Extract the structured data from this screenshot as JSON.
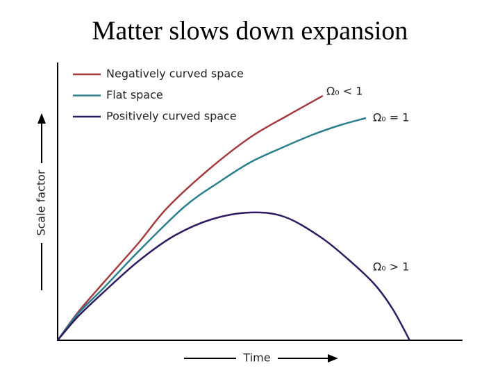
{
  "chart_data": {
    "type": "line",
    "title": "Matter slows down expansion",
    "x_label": "Time",
    "y_label": "Scale factor",
    "xlim": [
      0,
      10
    ],
    "ylim": [
      0,
      10
    ],
    "legend": "top-left",
    "series": [
      {
        "name": "Negatively curved space",
        "color": "#a33a3e",
        "x": [
          0,
          0.5,
          1.15,
          2,
          2.7,
          3.7,
          4.76,
          5.7,
          6.56
        ],
        "values": [
          0,
          1.0,
          2.1,
          3.5,
          4.75,
          6.1,
          7.3,
          8.1,
          8.8
        ]
      },
      {
        "name": "Flat space",
        "color": "#2a7f8e",
        "x": [
          0,
          0.5,
          1.15,
          2,
          3.13,
          4,
          4.76,
          5.5,
          6.31,
          7.0,
          7.63
        ],
        "values": [
          0,
          0.95,
          1.9,
          3.2,
          4.8,
          5.7,
          6.4,
          6.9,
          7.4,
          7.75,
          8.0
        ]
      },
      {
        "name": "Positively curved space",
        "color": "#2e1a5e",
        "x": [
          0,
          0.5,
          1.15,
          2,
          2.87,
          3.8,
          4.76,
          5.6,
          6.47,
          7.2,
          7.85,
          8.3,
          8.71
        ],
        "values": [
          0,
          0.85,
          1.75,
          2.85,
          3.75,
          4.35,
          4.6,
          4.45,
          3.75,
          2.9,
          2.0,
          1.1,
          0
        ]
      }
    ],
    "annotations": [
      "Ω₀ < 1",
      "Ω₀ = 1",
      "Ω₀ > 1"
    ]
  }
}
